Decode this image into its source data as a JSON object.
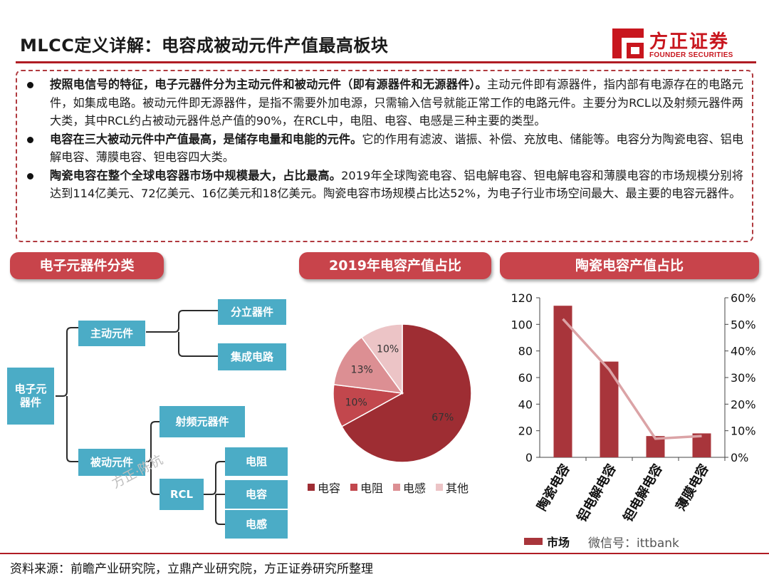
{
  "header": {
    "title": "MLCC定义详解：电容成被动元件产值最高板块",
    "logo_cn": "方正证券",
    "logo_en": "FOUNDER SECURITIES"
  },
  "bullets": [
    {
      "bold": "按照电信号的特征，电子元器件分为主动元件和被动元件（即有源器件和无源器件）。",
      "text": "主动元件即有源器件，指内部有电源存在的电路元件，如集成电路。被动元件即无源器件，是指不需要外加电源，只需输入信号就能正常工作的电路元件。主要分为RCL以及射频元器件两大类，其中RCL约占被动元器件总产值的90%，在RCL中，电阻、电容、电感是三种主要的类型。"
    },
    {
      "bold": "电容在三大被动元件中产值最高，是储存电量和电能的元件。",
      "text": "它的作用有滤波、谐振、补偿、充放电、储能等。电容分为陶瓷电容、铝电解电容、薄膜电容、钽电容四大类。"
    },
    {
      "bold": "陶瓷电容在整个全球电容器市场中规模最大，占比最高。",
      "text": "2019年全球陶瓷电容、铝电解电容、钽电解电容和薄膜电容的市场规模分别将达到114亿美元、72亿美元、16亿美元和18亿美元。陶瓷电容市场规模占比达52%，为电子行业市场空间最大、最主要的电容元器件。"
    }
  ],
  "banners": {
    "classification": "电子元器件分类",
    "pie": "2019年电容产值占比",
    "ceramic": "陶瓷电容产值占比"
  },
  "tree": {
    "root": "电子元器件",
    "active": "主动元件",
    "discrete": "分立器件",
    "ic": "集成电路",
    "passive": "被动元件",
    "rf": "射频元器件",
    "rcl": "RCL",
    "resistor": "电阻",
    "capacitor": "电容",
    "inductor": "电感",
    "watermark": "方正·陈杭"
  },
  "chart_data": [
    {
      "type": "pie",
      "title": "2019年电容产值占比",
      "categories": [
        "电容",
        "电阻",
        "电感",
        "其他"
      ],
      "values": [
        67,
        10,
        13,
        10
      ],
      "labels": [
        "67%",
        "10%",
        "13%",
        "10%"
      ],
      "colors": [
        "#9e2d33",
        "#c2474d",
        "#dc8f93",
        "#ecc4c6"
      ],
      "legend_position": "bottom"
    },
    {
      "type": "bar",
      "title": "陶瓷电容产值占比",
      "categories": [
        "陶瓷电容",
        "铝电解电容",
        "钽电解电容",
        "薄膜电容"
      ],
      "series": [
        {
          "name": "市场",
          "type": "bar",
          "axis": "left",
          "values": [
            114,
            72,
            16,
            18
          ],
          "color": "#a8353b"
        },
        {
          "type": "line",
          "axis": "right",
          "values": [
            0.52,
            0.33,
            0.07,
            0.08
          ],
          "color": "#dba3a6"
        }
      ],
      "ylim_left": [
        0,
        120
      ],
      "yticks_left": [
        "0",
        "20",
        "40",
        "60",
        "80",
        "100",
        "120"
      ],
      "ylim_right": [
        0,
        0.6
      ],
      "yticks_right": [
        "0%",
        "10%",
        "20%",
        "30%",
        "40%",
        "50%",
        "60%"
      ],
      "grid": false,
      "legend_position": "bottom"
    }
  ],
  "watermark_wechat": "微信号：ittbank",
  "footer": {
    "source": "资料来源：前瞻产业研究院，立鼎产业研究院，方正证券研究所整理"
  }
}
